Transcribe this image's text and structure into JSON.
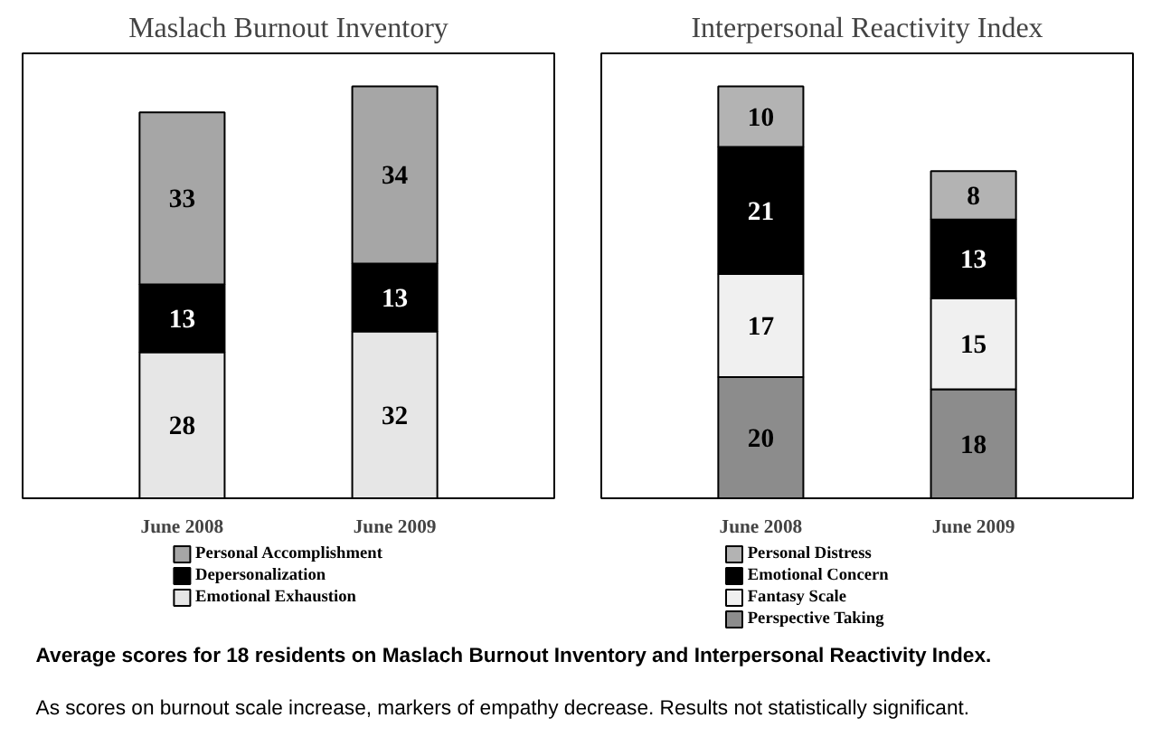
{
  "chart_data": [
    {
      "type": "bar",
      "title": "Maslach Burnout Inventory",
      "categories": [
        "June 2008",
        "June 2009"
      ],
      "stacked": true,
      "data_labels": true,
      "legend": "bottom",
      "tick_labels": "x",
      "series": [
        {
          "name": "Emotional Exhaustion",
          "color": "#e6e6e6",
          "values": [
            28,
            32
          ]
        },
        {
          "name": "Depersonalization",
          "color": "#000000",
          "values": [
            13,
            13
          ]
        },
        {
          "name": "Personal Accomplishment",
          "color": "#a6a6a6",
          "values": [
            33,
            34
          ]
        }
      ]
    },
    {
      "type": "bar",
      "title": "Interpersonal Reactivity Index",
      "categories": [
        "June 2008",
        "June 2009"
      ],
      "stacked": true,
      "data_labels": true,
      "legend": "bottom",
      "tick_labels": "x",
      "annotations": [
        "Average scores for 18 residents on Maslach Burnout Inventory and Interpersonal Reactivity Index.",
        "As scores on burnout scale increase, markers of empathy decrease.  Results not statistically significant."
      ],
      "series": [
        {
          "name": "Perspective Taking",
          "color": "#8c8c8c",
          "values": [
            20,
            18
          ]
        },
        {
          "name": "Fantasy Scale",
          "color": "#f0f0f0",
          "values": [
            17,
            15
          ]
        },
        {
          "name": "Emotional Concern",
          "color": "#000000",
          "values": [
            21,
            13
          ]
        },
        {
          "name": "Personal Distress",
          "color": "#b3b3b3",
          "values": [
            10,
            8
          ]
        }
      ]
    }
  ]
}
